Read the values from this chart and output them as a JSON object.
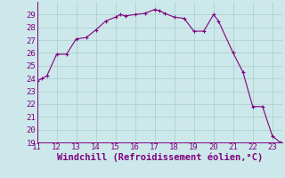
{
  "x": [
    11,
    11.25,
    11.5,
    12,
    12.5,
    13,
    13.5,
    14,
    14.5,
    15,
    15.25,
    15.5,
    16,
    16.5,
    17,
    17.25,
    17.5,
    18,
    18.5,
    19,
    19.5,
    20,
    20.25,
    21,
    21.5,
    22,
    22.5,
    23,
    23.4
  ],
  "y": [
    23.8,
    24.0,
    24.2,
    25.9,
    25.9,
    27.1,
    27.2,
    27.8,
    28.5,
    28.8,
    29.0,
    28.9,
    29.0,
    29.1,
    29.4,
    29.3,
    29.1,
    28.8,
    28.7,
    27.7,
    27.7,
    29.0,
    28.5,
    26.0,
    24.5,
    21.8,
    21.8,
    19.5,
    19.0
  ],
  "line_color": "#800080",
  "marker_color": "#800080",
  "bg_color": "#cce8ea",
  "grid_color": "#aacccc",
  "axis_color": "#800080",
  "xlabel": "Windchill (Refroidissement éolien,°C)",
  "xlim": [
    11,
    23.5
  ],
  "ylim": [
    19,
    30
  ],
  "xticks": [
    11,
    12,
    13,
    14,
    15,
    16,
    17,
    18,
    19,
    20,
    21,
    22,
    23
  ],
  "yticks": [
    19,
    20,
    21,
    22,
    23,
    24,
    25,
    26,
    27,
    28,
    29
  ],
  "tick_fontsize": 6.5,
  "label_fontsize": 7.5
}
